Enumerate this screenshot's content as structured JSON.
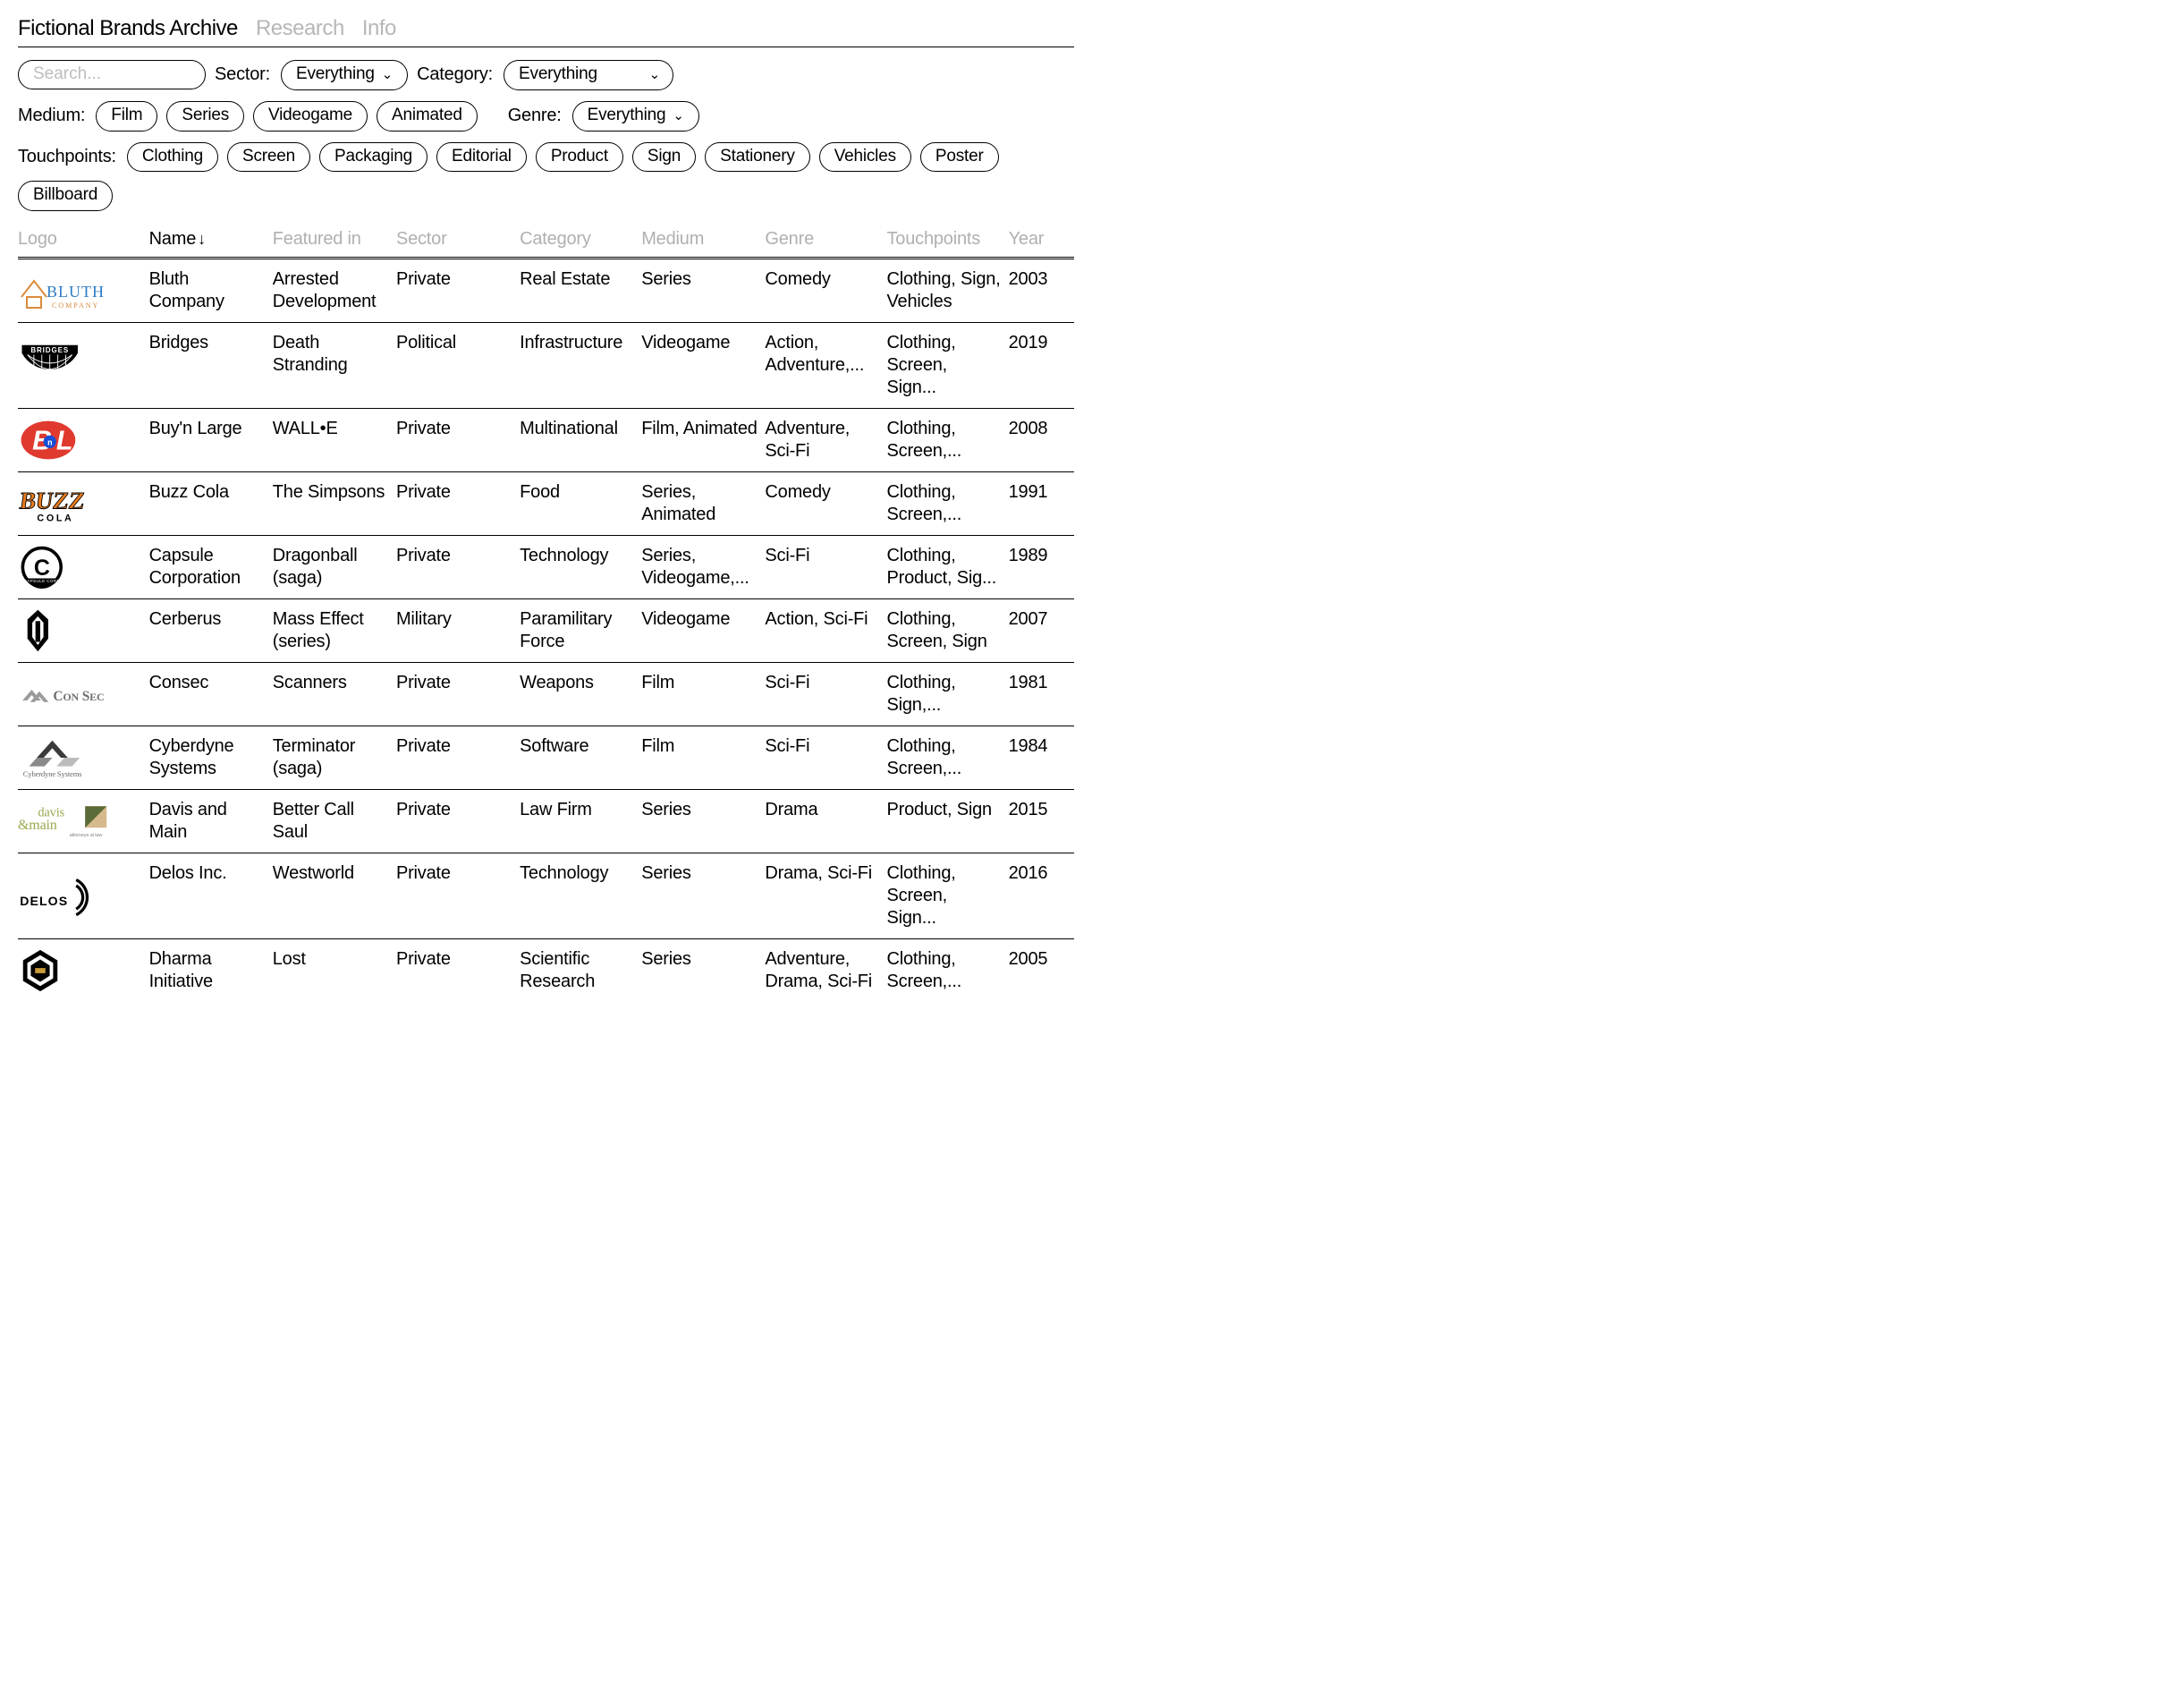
{
  "nav": {
    "title": "Fictional Brands Archive",
    "links": [
      {
        "label": "Research",
        "active": false
      },
      {
        "label": "Info",
        "active": false
      }
    ]
  },
  "filters": {
    "search_placeholder": "Search...",
    "sector_label": "Sector:",
    "sector_value": "Everything",
    "category_label": "Category:",
    "category_value": "Everything",
    "medium_label": "Medium:",
    "medium_options": [
      "Film",
      "Series",
      "Videogame",
      "Animated"
    ],
    "genre_label": "Genre:",
    "genre_value": "Everything",
    "touchpoints_label": "Touchpoints:",
    "touchpoints_options": [
      "Clothing",
      "Screen",
      "Packaging",
      "Editorial",
      "Product",
      "Sign",
      "Stationery",
      "Vehicles",
      "Poster",
      "Billboard"
    ]
  },
  "table": {
    "columns": [
      "Logo",
      "Name",
      "Featured in",
      "Sector",
      "Category",
      "Medium",
      "Genre",
      "Touchpoints",
      "Year"
    ],
    "sort_column": "Name",
    "sort_dir": "asc",
    "rows": [
      {
        "logo": "bluth",
        "name": "Bluth Company",
        "featured": "Arrested Development",
        "sector": "Private",
        "category": "Real Estate",
        "medium": "Series",
        "genre": "Comedy",
        "touchpoints": "Clothing, Sign, Vehicles",
        "year": "2003"
      },
      {
        "logo": "bridges",
        "name": "Bridges",
        "featured": "Death Stranding",
        "sector": "Political",
        "category": "Infrastructure",
        "medium": "Videogame",
        "genre": "Action, Adventure,...",
        "touchpoints": "Clothing, Screen, Sign...",
        "year": "2019"
      },
      {
        "logo": "bnl",
        "name": "Buy'n Large",
        "featured": "WALL•E",
        "sector": "Private",
        "category": "Multinational",
        "medium": "Film, Animated",
        "genre": "Adventure, Sci-Fi",
        "touchpoints": "Clothing, Screen,...",
        "year": "2008"
      },
      {
        "logo": "buzz",
        "name": "Buzz Cola",
        "featured": "The Simpsons",
        "sector": "Private",
        "category": "Food",
        "medium": "Series, Animated",
        "genre": "Comedy",
        "touchpoints": "Clothing, Screen,...",
        "year": "1991"
      },
      {
        "logo": "capsule",
        "name": "Capsule Corporation",
        "featured": "Dragonball (saga)",
        "sector": "Private",
        "category": "Technology",
        "medium": "Series, Videogame,...",
        "genre": "Sci-Fi",
        "touchpoints": "Clothing, Product, Sig...",
        "year": "1989"
      },
      {
        "logo": "cerberus",
        "name": "Cerberus",
        "featured": "Mass Effect (series)",
        "sector": "Military",
        "category": "Paramilitary Force",
        "medium": "Videogame",
        "genre": "Action, Sci-Fi",
        "touchpoints": "Clothing, Screen, Sign",
        "year": "2007"
      },
      {
        "logo": "consec",
        "name": "Consec",
        "featured": "Scanners",
        "sector": "Private",
        "category": "Weapons",
        "medium": "Film",
        "genre": "Sci-Fi",
        "touchpoints": "Clothing, Sign,...",
        "year": "1981"
      },
      {
        "logo": "cyberdyne",
        "name": "Cyberdyne Systems",
        "featured": "Terminator (saga)",
        "sector": "Private",
        "category": "Software",
        "medium": "Film",
        "genre": "Sci-Fi",
        "touchpoints": "Clothing, Screen,...",
        "year": "1984"
      },
      {
        "logo": "davis",
        "name": "Davis and Main",
        "featured": "Better Call Saul",
        "sector": "Private",
        "category": "Law Firm",
        "medium": "Series",
        "genre": "Drama",
        "touchpoints": "Product, Sign",
        "year": "2015"
      },
      {
        "logo": "delos",
        "name": "Delos Inc.",
        "featured": "Westworld",
        "sector": "Private",
        "category": "Technology",
        "medium": "Series",
        "genre": "Drama, Sci-Fi",
        "touchpoints": "Clothing, Screen, Sign...",
        "year": "2016"
      },
      {
        "logo": "dharma",
        "name": "Dharma Initiative",
        "featured": "Lost",
        "sector": "Private",
        "category": "Scientific Research",
        "medium": "Series",
        "genre": "Adventure, Drama, Sci-Fi",
        "touchpoints": "Clothing, Screen,...",
        "year": "2005"
      }
    ]
  },
  "colors": {
    "text": "#000000",
    "muted": "#b0b0b0",
    "bnl_red": "#e03a2f",
    "bnl_blue": "#1a4fd6",
    "bluth_blue": "#2e7bc4",
    "bluth_orange": "#d98b3a",
    "buzz_orange": "#e67a1f",
    "davis_olive": "#9aa84f",
    "davis_tan": "#d6b98c",
    "consec_gray": "#9a9a9a"
  }
}
